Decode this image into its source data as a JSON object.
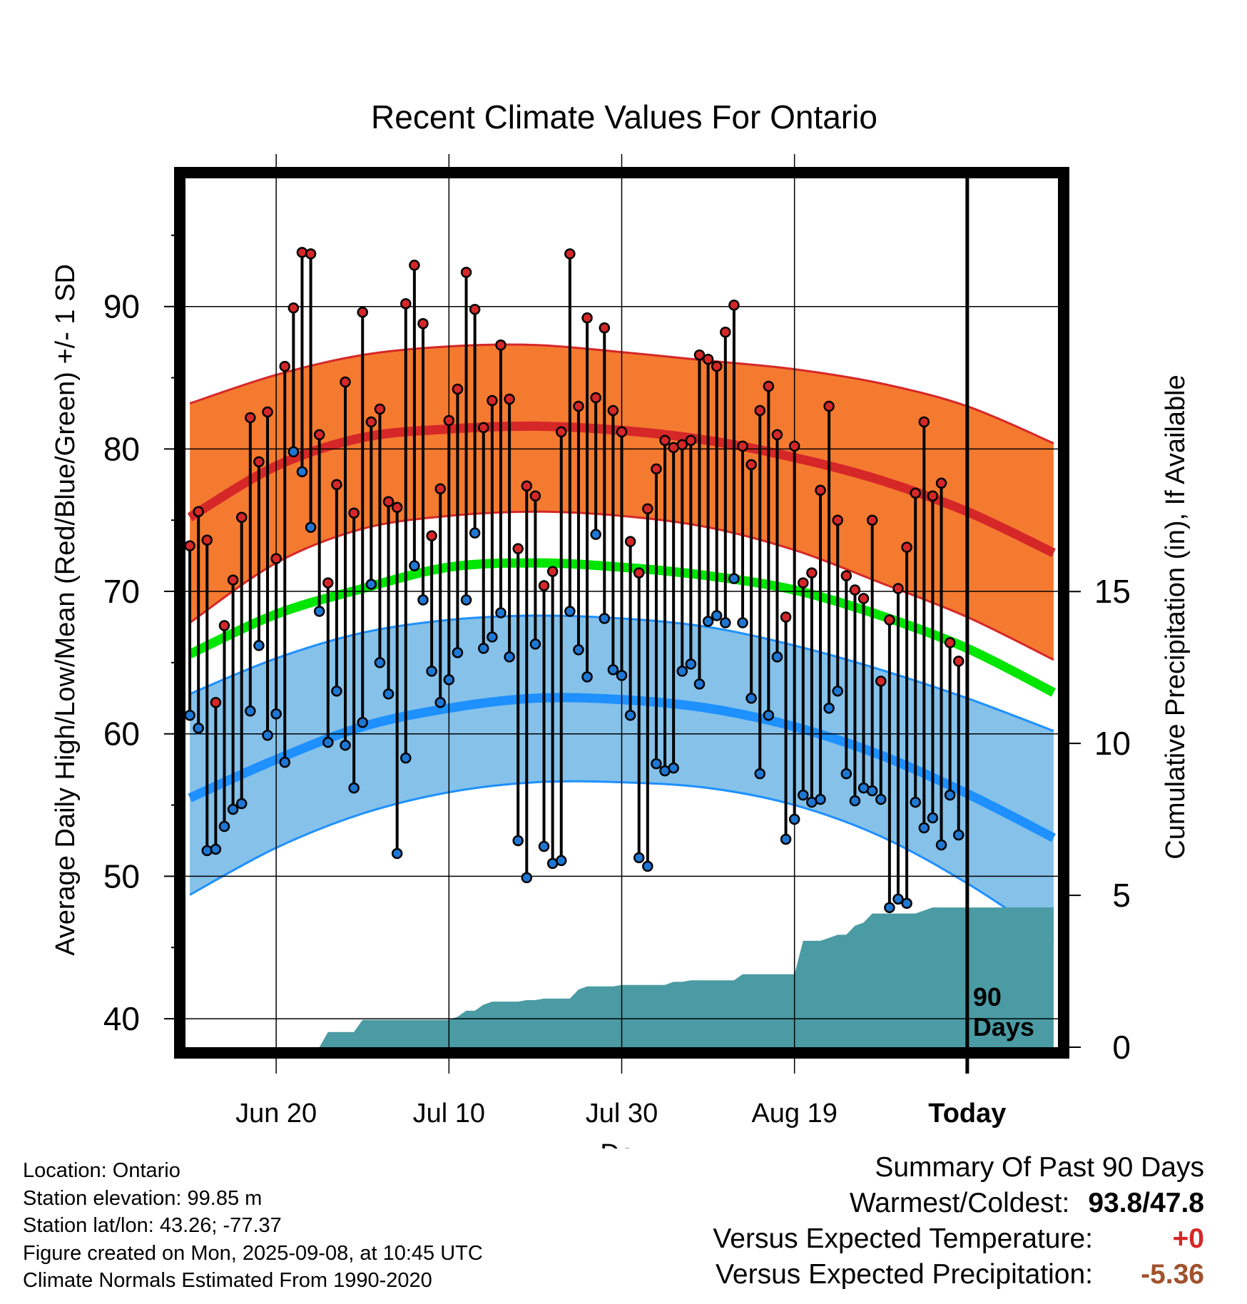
{
  "title": "Recent Climate Values For Ontario",
  "chart_data": {
    "type": "line",
    "title": "Recent Climate Values For Ontario",
    "xlabel": "Day",
    "ylabel": "Average Daily High/Low/Mean (Red/Blue/Green) +/- 1 SD",
    "y2label": "Cumulative Precipitation (in), If Available",
    "x_ticks": [
      "Jun 20",
      "Jul 10",
      "Jul 30",
      "Aug 19",
      "Today"
    ],
    "x_tick_days": [
      10,
      30,
      50,
      70,
      90
    ],
    "x_range": [
      -0.5,
      100.5
    ],
    "ylim": [
      38,
      99
    ],
    "y_ticks": [
      40,
      50,
      60,
      70,
      80,
      90
    ],
    "y2lim": [
      0,
      28.6
    ],
    "y2_ticks": [
      0,
      5,
      10,
      15
    ],
    "today_day": 90,
    "period_label": "90 Days",
    "normals": {
      "days": [
        0,
        10,
        20,
        30,
        40,
        50,
        60,
        70,
        80,
        90,
        100
      ],
      "high_mean": [
        75.2,
        78.8,
        80.8,
        81.4,
        81.6,
        81.3,
        80.6,
        79.4,
        77.8,
        75.6,
        72.7
      ],
      "high_plus_sd": [
        83.2,
        85.2,
        86.6,
        87.2,
        87.3,
        86.8,
        86.2,
        85.6,
        84.6,
        83.0,
        80.4
      ],
      "high_minus_sd": [
        67.8,
        72.0,
        74.4,
        75.3,
        75.6,
        75.3,
        74.5,
        72.9,
        70.6,
        68.2,
        65.2
      ],
      "avg_mean": [
        65.6,
        68.4,
        70.2,
        71.7,
        72.0,
        71.7,
        71.1,
        70.1,
        68.3,
        66.0,
        62.9
      ],
      "low_mean": [
        55.5,
        58.2,
        60.5,
        61.8,
        62.5,
        62.4,
        61.8,
        60.5,
        58.5,
        55.8,
        52.7
      ],
      "low_plus_sd": [
        62.8,
        65.3,
        67.1,
        68.0,
        68.3,
        68.1,
        67.5,
        66.2,
        64.5,
        62.5,
        60.2
      ],
      "low_minus_sd": [
        48.7,
        52.0,
        54.4,
        55.9,
        56.6,
        56.6,
        56.2,
        55.0,
        52.8,
        49.5,
        45.5
      ]
    },
    "series": [
      {
        "name": "High",
        "color": "#d62728",
        "x": [
          0,
          1,
          2,
          3,
          4,
          5,
          6,
          7,
          8,
          9,
          10,
          11,
          12,
          13,
          14,
          15,
          16,
          17,
          18,
          19,
          20,
          21,
          22,
          23,
          24,
          25,
          26,
          27,
          28,
          29,
          30,
          31,
          32,
          33,
          34,
          35,
          36,
          37,
          38,
          39,
          40,
          41,
          42,
          43,
          44,
          45,
          46,
          47,
          48,
          49,
          50,
          51,
          52,
          53,
          54,
          55,
          56,
          57,
          58,
          59,
          60,
          61,
          62,
          63,
          64,
          65,
          66,
          67,
          68,
          69,
          70,
          71,
          72,
          73,
          74,
          75,
          76,
          77,
          78,
          79,
          80,
          81,
          82,
          83,
          84,
          85,
          86,
          87,
          88,
          89
        ],
        "values": [
          73.2,
          75.6,
          73.6,
          62.2,
          67.6,
          70.8,
          75.2,
          82.2,
          79.1,
          82.6,
          72.3,
          85.8,
          89.9,
          93.8,
          93.7,
          81.0,
          70.6,
          77.5,
          84.7,
          75.5,
          89.6,
          81.9,
          82.8,
          76.3,
          75.9,
          90.2,
          92.9,
          88.8,
          73.9,
          77.2,
          82.0,
          84.2,
          92.4,
          89.8,
          81.5,
          83.4,
          87.3,
          83.5,
          73.0,
          77.4,
          76.7,
          70.4,
          71.4,
          81.2,
          93.7,
          83.0,
          89.2,
          83.6,
          88.5,
          82.7,
          81.2,
          73.5,
          71.3,
          75.8,
          78.6,
          80.6,
          80.1,
          80.3,
          80.6,
          86.6,
          86.3,
          85.8,
          88.2,
          90.1,
          80.2,
          78.9,
          82.7,
          84.4,
          81.0,
          68.2,
          80.2,
          70.6,
          71.3,
          77.1,
          83.0,
          75.0,
          71.1,
          70.1,
          69.5,
          75.0,
          63.7,
          68.0,
          70.2,
          73.1,
          76.9,
          81.9,
          76.7,
          77.6,
          66.4,
          65.1
        ]
      },
      {
        "name": "Low",
        "color": "#1f77d4",
        "x": [
          0,
          1,
          2,
          3,
          4,
          5,
          6,
          7,
          8,
          9,
          10,
          11,
          12,
          13,
          14,
          15,
          16,
          17,
          18,
          19,
          20,
          21,
          22,
          23,
          24,
          25,
          26,
          27,
          28,
          29,
          30,
          31,
          32,
          33,
          34,
          35,
          36,
          37,
          38,
          39,
          40,
          41,
          42,
          43,
          44,
          45,
          46,
          47,
          48,
          49,
          50,
          51,
          52,
          53,
          54,
          55,
          56,
          57,
          58,
          59,
          60,
          61,
          62,
          63,
          64,
          65,
          66,
          67,
          68,
          69,
          70,
          71,
          72,
          73,
          74,
          75,
          76,
          77,
          78,
          79,
          80,
          81,
          82,
          83,
          84,
          85,
          86,
          87,
          88,
          89
        ],
        "values": [
          61.3,
          60.4,
          51.8,
          51.9,
          53.5,
          54.7,
          55.1,
          61.6,
          66.2,
          59.9,
          61.4,
          58.0,
          79.8,
          78.4,
          74.5,
          68.6,
          59.4,
          63.0,
          59.2,
          56.2,
          60.8,
          70.5,
          65.0,
          62.8,
          51.6,
          58.3,
          71.8,
          69.4,
          64.4,
          62.2,
          63.8,
          65.7,
          69.4,
          74.1,
          66.0,
          66.8,
          68.5,
          65.4,
          52.5,
          49.9,
          66.3,
          52.1,
          50.9,
          51.1,
          68.6,
          65.9,
          64.0,
          74.0,
          68.1,
          64.5,
          64.1,
          61.3,
          51.3,
          50.7,
          57.9,
          57.4,
          57.6,
          64.4,
          64.9,
          63.5,
          67.9,
          68.3,
          67.8,
          70.9,
          67.8,
          62.5,
          57.2,
          61.3,
          65.4,
          52.6,
          54.0,
          55.7,
          55.2,
          55.4,
          61.8,
          63.0,
          57.2,
          55.3,
          56.2,
          56.0,
          55.4,
          47.8,
          48.4,
          48.1,
          55.2,
          53.4,
          54.1,
          52.2,
          55.7,
          52.9
        ]
      },
      {
        "name": "Cumulative Precipitation",
        "color": "#4a9ba3",
        "x": [
          0,
          15,
          16,
          19,
          20,
          30,
          31,
          32,
          33,
          34,
          35,
          36,
          37,
          38,
          39,
          40,
          41,
          42,
          43,
          44,
          45,
          46,
          47,
          48,
          49,
          50,
          55,
          56,
          57,
          58,
          59,
          60,
          61,
          62,
          63,
          64,
          65,
          66,
          67,
          68,
          69,
          70,
          71,
          72,
          73,
          74,
          75,
          76,
          77,
          78,
          79,
          80,
          81,
          82,
          83,
          84,
          85,
          86,
          87,
          88,
          89,
          90,
          100
        ],
        "values": [
          0,
          0,
          0.5,
          0.5,
          0.9,
          0.9,
          1.0,
          1.2,
          1.2,
          1.4,
          1.5,
          1.5,
          1.5,
          1.5,
          1.55,
          1.55,
          1.6,
          1.6,
          1.6,
          1.6,
          1.9,
          2.0,
          2.0,
          2.0,
          2.0,
          2.05,
          2.05,
          2.15,
          2.15,
          2.2,
          2.2,
          2.2,
          2.2,
          2.2,
          2.2,
          2.4,
          2.4,
          2.4,
          2.4,
          2.4,
          2.4,
          2.4,
          3.5,
          3.5,
          3.5,
          3.6,
          3.7,
          3.7,
          4.0,
          4.1,
          4.4,
          4.4,
          4.4,
          4.4,
          4.4,
          4.4,
          4.5,
          4.6,
          4.6,
          4.6,
          4.6,
          4.6,
          4.6
        ]
      }
    ]
  },
  "info": {
    "location": "Location: Ontario",
    "elevation": "Station elevation: 99.85 m",
    "latlon": "Station lat/lon: 43.26; -77.37",
    "created": "Figure created on Mon, 2025-09-08, at 10:45 UTC",
    "normals": "Climate Normals Estimated From 1990-2020"
  },
  "summary": {
    "title": "Summary Of Past 90 Days",
    "warm_cold_label": "Warmest/Coldest:",
    "warm_cold_value": "93.8/47.8",
    "temp_label": "Versus Expected Temperature:",
    "temp_value": "+0",
    "temp_color": "#d62728",
    "precip_label": "Versus Expected Precipitation:",
    "precip_value": "-5.36",
    "precip_color": "#a0522d"
  },
  "colors": {
    "high_band": "#f47a30",
    "high_line": "#d62728",
    "low_band": "#85c1e9",
    "low_line": "#1e90ff",
    "mean_line": "#00e600",
    "precip_fill": "#4a9ba3"
  }
}
